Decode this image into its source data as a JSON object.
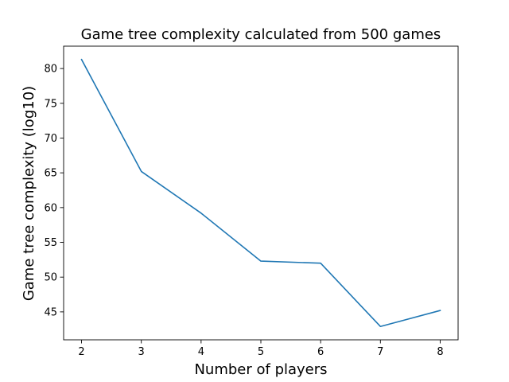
{
  "chart_data": {
    "type": "line",
    "title": "Game tree complexity calculated from 500 games",
    "xlabel": "Number of players",
    "ylabel": "Game tree complexity (log10)",
    "x": [
      2,
      3,
      4,
      5,
      6,
      7,
      8
    ],
    "series": [
      {
        "values": [
          81.3,
          65.2,
          59.2,
          52.3,
          52.0,
          42.9,
          45.2
        ],
        "color": "#1f77b4"
      }
    ],
    "xticks": [
      "2",
      "3",
      "4",
      "5",
      "6",
      "7",
      "8"
    ],
    "yticks": [
      "45",
      "50",
      "55",
      "60",
      "65",
      "70",
      "75",
      "80"
    ],
    "xlim": [
      1.7,
      8.3
    ],
    "ylim": [
      40.98,
      83.22
    ],
    "grid": false,
    "legend": "none"
  }
}
